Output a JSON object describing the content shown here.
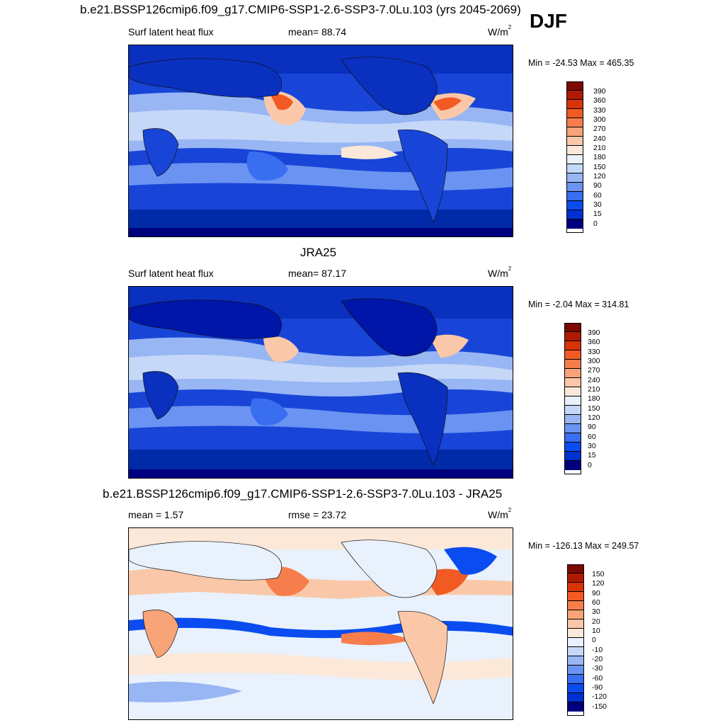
{
  "season": "DJF",
  "units_base": "W/m",
  "units_exp": "2",
  "palette_full": [
    "#00007f",
    "#0016a8",
    "#0030d2",
    "#0a4cf0",
    "#3a6ef0",
    "#6a93f2",
    "#98b6f4",
    "#c6d8f8",
    "#e8f1fc",
    "#fce8d8",
    "#fac8a8",
    "#f8a478",
    "#f67e4c",
    "#f25a24",
    "#d83408",
    "#b01a02",
    "#7c0a00"
  ],
  "palette_diff": [
    "#00007f",
    "#0016a8",
    "#0030d2",
    "#0a4cf0",
    "#3a6ef0",
    "#6a93f2",
    "#98b6f4",
    "#c6d8f8",
    "#e8f1fc",
    "#fce8d8",
    "#fac8a8",
    "#f8a478",
    "#f67e4c",
    "#f25a24",
    "#d83408",
    "#b01a02",
    "#7c0a00"
  ],
  "panels": [
    {
      "title": "b.e21.BSSP126cmip6.f09_g17.CMIP6-SSP1-2.6-SSP3-7.0Lu.103 (yrs 2045-2069)",
      "left_label": "Surf latent heat flux",
      "center_label": "mean=  88.74",
      "minmax": "Min = -24.53 Max = 465.35",
      "levels": [
        "390",
        "360",
        "330",
        "300",
        "270",
        "240",
        "210",
        "180",
        "150",
        "120",
        "90",
        "60",
        "30",
        "15",
        "0"
      ]
    },
    {
      "title": "JRA25",
      "left_label": "Surf latent heat flux",
      "center_label": "mean=  87.17",
      "minmax": "Min =  -2.04 Max = 314.81",
      "levels": [
        "390",
        "360",
        "330",
        "300",
        "270",
        "240",
        "210",
        "180",
        "150",
        "120",
        "90",
        "60",
        "30",
        "15",
        "0"
      ]
    },
    {
      "title": "b.e21.BSSP126cmip6.f09_g17.CMIP6-SSP1-2.6-SSP3-7.0Lu.103 - JRA25",
      "left_label": "mean =   1.57",
      "center_label": "rmse =  23.72",
      "minmax": "Min = -126.13 Max = 249.57",
      "levels": [
        "150",
        "120",
        "90",
        "60",
        "30",
        "20",
        "10",
        "0",
        "-10",
        "-20",
        "-30",
        "-60",
        "-90",
        "-120",
        "-150"
      ]
    }
  ]
}
